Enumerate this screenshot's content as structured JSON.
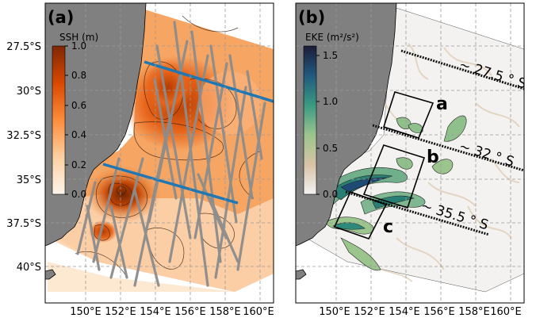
{
  "figure": {
    "panel_a": {
      "label": "(a)",
      "colorbar": {
        "title": "SSH (m)",
        "ticks": [
          "1.0",
          "0.8",
          "0.6",
          "0.4",
          "0.2",
          "0.0"
        ],
        "range": [
          0.0,
          1.0
        ],
        "colormap": "oranges",
        "colors": [
          "#fff5eb",
          "#fdd0a2",
          "#fd8d3c",
          "#d94801",
          "#7f2704"
        ]
      },
      "lat_ticks": [
        "27.5°S",
        "30°S",
        "32.5°S",
        "35°S",
        "37.5°S",
        "40°S"
      ],
      "lon_ticks": [
        "150°E",
        "152°E",
        "154°E",
        "156°E",
        "158°E",
        "160°E"
      ],
      "line_color": "#1f77b4",
      "track_color": "#8c8c8c"
    },
    "panel_b": {
      "label": "(b)",
      "colorbar": {
        "title": "EKE (m²/s²)",
        "ticks": [
          "1.5",
          "1.0",
          "0.5",
          "0.0"
        ],
        "range": [
          0.0,
          1.6
        ],
        "colormap": "cmocean rain",
        "colors": [
          "#eeeeee",
          "#d8c3a5",
          "#8fbf8a",
          "#2d8a7a",
          "#1f4a75",
          "#1c1c3a"
        ]
      },
      "lon_ticks": [
        "150°E",
        "152°E",
        "154°E",
        "156°E",
        "158°E",
        "160°E"
      ],
      "sections": [
        {
          "label": "~ 27.5 ° S"
        },
        {
          "label": "~ 32 ° S"
        },
        {
          "label": "~ 35.5 ° S"
        }
      ],
      "boxes": [
        {
          "label": "a"
        },
        {
          "label": "b"
        },
        {
          "label": "c"
        }
      ]
    },
    "land_color": "#808080"
  }
}
